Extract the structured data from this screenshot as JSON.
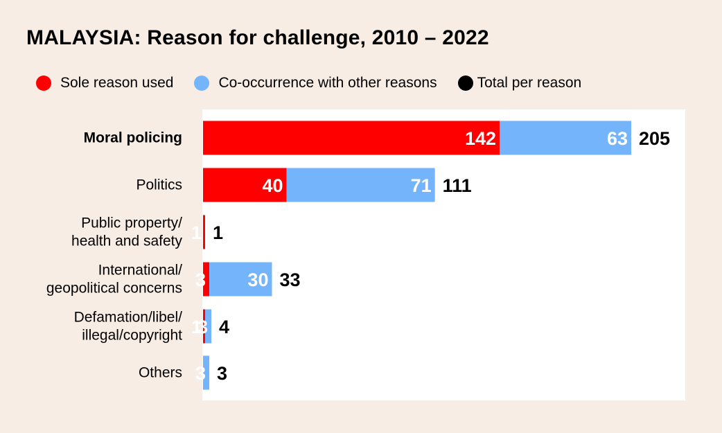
{
  "chart_data": {
    "type": "bar",
    "orientation": "horizontal",
    "stacked": true,
    "title": "MALAYSIA: Reason for challenge, 2010 – 2022",
    "legend_position": "top-left",
    "grid": false,
    "xlim": [
      0,
      222
    ],
    "categories": [
      [
        "Moral policing"
      ],
      [
        "Politics"
      ],
      [
        "Public property/",
        "health and safety"
      ],
      [
        "International/",
        "geopolitical concerns"
      ],
      [
        "Defamation/libel/",
        "illegal/copyright"
      ],
      [
        "Others"
      ]
    ],
    "highlight_category": 0,
    "series": [
      {
        "name": "Sole reason used",
        "color": "#fe0000",
        "values": [
          142,
          40,
          1,
          3,
          1,
          0
        ]
      },
      {
        "name": "Co-occurrence with other reasons",
        "color": "#74b4fb",
        "values": [
          63,
          71,
          0,
          30,
          3,
          3
        ]
      }
    ],
    "totals_name": "Total per reason",
    "totals_color": "#000000",
    "totals": [
      205,
      111,
      1,
      33,
      4,
      3
    ]
  }
}
